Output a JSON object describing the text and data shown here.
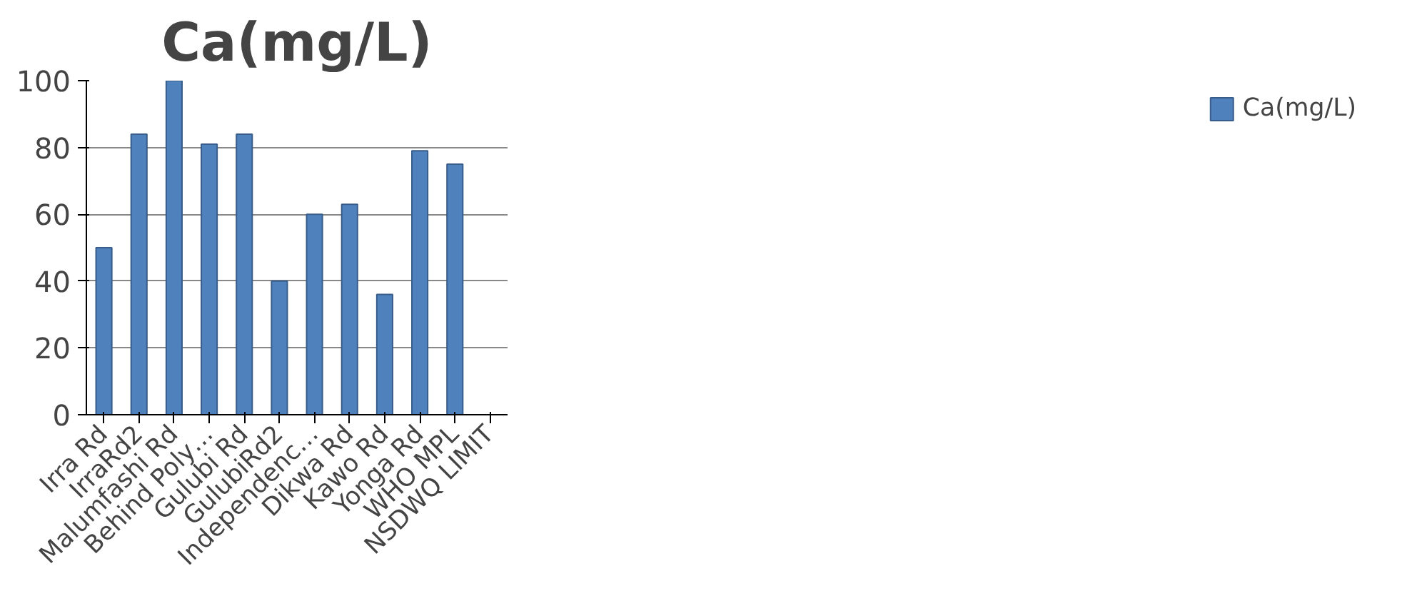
{
  "chart_data": {
    "type": "bar",
    "title": "Ca(mg/L)",
    "categories": [
      "Irra Rd",
      "IrraRd2",
      "Malumfashi Rd",
      "Behind Poly…",
      "Gulubi Rd",
      "GulubiRd2",
      "Independenc…",
      "Dikwa Rd",
      "Kawo Rd",
      "Yonga Rd",
      "WHO MPL",
      "NSDWQ LIMIT"
    ],
    "series": [
      {
        "name": "Ca(mg/L)",
        "color": "#4f81bd",
        "values": [
          50,
          84,
          100,
          81,
          84,
          40,
          60,
          63,
          36,
          79,
          75,
          null
        ]
      }
    ],
    "ylim": [
      0,
      100
    ],
    "yticks": [
      0,
      20,
      40,
      60,
      80,
      100
    ],
    "grid": "y",
    "legend": "right"
  }
}
